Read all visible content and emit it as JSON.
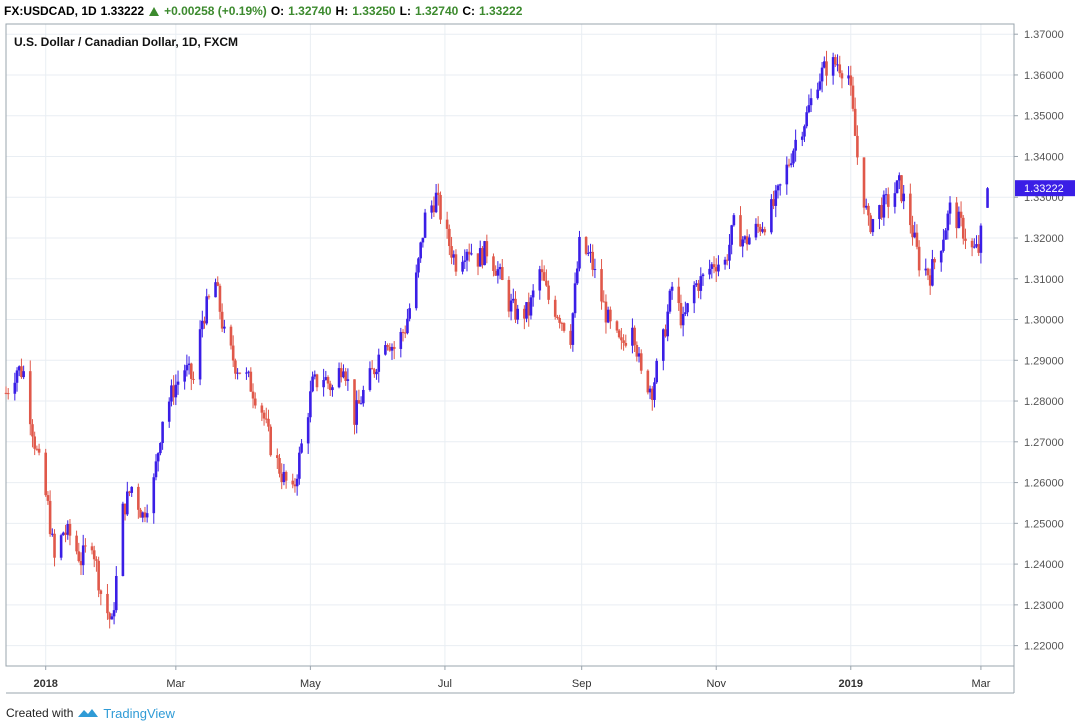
{
  "header": {
    "symbol": "FX:USDCAD, 1D",
    "last": "1.33222",
    "change": "+0.00258 (+0.19%)",
    "o_label": "O:",
    "o_value": "1.32740",
    "h_label": "H:",
    "h_value": "1.33250",
    "l_label": "L:",
    "l_value": "1.32740",
    "c_label": "C:",
    "c_value": "1.33222"
  },
  "footer": {
    "created_with": "Created with",
    "brand": "TradingView"
  },
  "colors": {
    "up": "#3a1ee6",
    "down": "#e0584a",
    "grid": "#e9eef3",
    "axis": "#555555",
    "price_tag": "#3a1ee6"
  },
  "chart_data": {
    "type": "candlestick",
    "title": "U.S. Dollar / Canadian Dollar, 1D, FXCM",
    "ylim": [
      1.215,
      1.3725
    ],
    "y_ticks": [
      "1.37000",
      "1.36000",
      "1.35000",
      "1.34000",
      "1.33000",
      "1.32000",
      "1.31000",
      "1.30000",
      "1.29000",
      "1.28000",
      "1.27000",
      "1.26000",
      "1.25000",
      "1.24000",
      "1.23000",
      "1.22000"
    ],
    "y_tick_values": [
      1.37,
      1.36,
      1.35,
      1.34,
      1.33,
      1.32,
      1.31,
      1.3,
      1.29,
      1.28,
      1.27,
      1.26,
      1.25,
      1.24,
      1.23,
      1.22
    ],
    "x_ticks": [
      {
        "label": "2018",
        "date": "2018-01-01"
      },
      {
        "label": "Mar",
        "date": "2018-03-01"
      },
      {
        "label": "May",
        "date": "2018-05-01"
      },
      {
        "label": "Jul",
        "date": "2018-07-01"
      },
      {
        "label": "Sep",
        "date": "2018-09-01"
      },
      {
        "label": "Nov",
        "date": "2018-11-01"
      },
      {
        "label": "2019",
        "date": "2019-01-01"
      },
      {
        "label": "Mar",
        "date": "2019-03-01"
      }
    ],
    "x_range": [
      "2017-12-14",
      "2019-03-16"
    ],
    "last_price": "1.33222",
    "last_value": 1.33222,
    "grid": true,
    "series_close": [
      [
        "2017-12-14",
        1.282
      ],
      [
        "2017-12-19",
        1.288
      ],
      [
        "2017-12-22",
        1.287
      ],
      [
        "2017-12-27",
        1.27
      ],
      [
        "2018-01-02",
        1.254
      ],
      [
        "2018-01-05",
        1.241
      ],
      [
        "2018-01-09",
        1.248
      ],
      [
        "2018-01-12",
        1.247
      ],
      [
        "2018-01-17",
        1.241
      ],
      [
        "2018-01-22",
        1.246
      ],
      [
        "2018-01-26",
        1.233
      ],
      [
        "2018-01-31",
        1.225
      ],
      [
        "2018-02-05",
        1.253
      ],
      [
        "2018-02-09",
        1.259
      ],
      [
        "2018-02-14",
        1.252
      ],
      [
        "2018-02-19",
        1.26
      ],
      [
        "2018-02-23",
        1.276
      ],
      [
        "2018-02-28",
        1.283
      ],
      [
        "2018-03-05",
        1.288
      ],
      [
        "2018-03-09",
        1.285
      ],
      [
        "2018-03-13",
        1.3
      ],
      [
        "2018-03-19",
        1.309
      ],
      [
        "2018-03-23",
        1.296
      ],
      [
        "2018-03-28",
        1.289
      ],
      [
        "2018-04-03",
        1.285
      ],
      [
        "2018-04-09",
        1.278
      ],
      [
        "2018-04-13",
        1.269
      ],
      [
        "2018-04-18",
        1.262
      ],
      [
        "2018-04-23",
        1.257
      ],
      [
        "2018-04-27",
        1.269
      ],
      [
        "2018-05-02",
        1.284
      ],
      [
        "2018-05-07",
        1.286
      ],
      [
        "2018-05-11",
        1.283
      ],
      [
        "2018-05-16",
        1.29
      ],
      [
        "2018-05-21",
        1.276
      ],
      [
        "2018-05-25",
        1.282
      ],
      [
        "2018-05-30",
        1.288
      ],
      [
        "2018-06-04",
        1.296
      ],
      [
        "2018-06-08",
        1.293
      ],
      [
        "2018-06-13",
        1.298
      ],
      [
        "2018-06-18",
        1.31
      ],
      [
        "2018-06-22",
        1.325
      ],
      [
        "2018-06-27",
        1.33
      ],
      [
        "2018-07-02",
        1.32
      ],
      [
        "2018-07-06",
        1.314
      ],
      [
        "2018-07-11",
        1.318
      ],
      [
        "2018-07-16",
        1.315
      ],
      [
        "2018-07-20",
        1.317
      ],
      [
        "2018-07-25",
        1.312
      ],
      [
        "2018-07-30",
        1.304
      ],
      [
        "2018-08-03",
        1.301
      ],
      [
        "2018-08-08",
        1.302
      ],
      [
        "2018-08-13",
        1.312
      ],
      [
        "2018-08-17",
        1.305
      ],
      [
        "2018-08-22",
        1.301
      ],
      [
        "2018-08-27",
        1.296
      ],
      [
        "2018-08-31",
        1.318
      ],
      [
        "2018-09-05",
        1.315
      ],
      [
        "2018-09-10",
        1.305
      ],
      [
        "2018-09-14",
        1.298
      ],
      [
        "2018-09-19",
        1.293
      ],
      [
        "2018-09-24",
        1.3
      ],
      [
        "2018-09-28",
        1.286
      ],
      [
        "2018-10-03",
        1.283
      ],
      [
        "2018-10-08",
        1.295
      ],
      [
        "2018-10-12",
        1.308
      ],
      [
        "2018-10-17",
        1.299
      ],
      [
        "2018-10-22",
        1.308
      ],
      [
        "2018-10-26",
        1.31
      ],
      [
        "2018-10-31",
        1.314
      ],
      [
        "2018-11-05",
        1.314
      ],
      [
        "2018-11-09",
        1.323
      ],
      [
        "2018-11-14",
        1.319
      ],
      [
        "2018-11-19",
        1.322
      ],
      [
        "2018-11-23",
        1.324
      ],
      [
        "2018-11-28",
        1.329
      ],
      [
        "2018-12-03",
        1.337
      ],
      [
        "2018-12-07",
        1.344
      ],
      [
        "2018-12-12",
        1.35
      ],
      [
        "2018-12-17",
        1.359
      ],
      [
        "2018-12-21",
        1.362
      ],
      [
        "2018-12-26",
        1.363
      ],
      [
        "2018-12-31",
        1.36
      ],
      [
        "2019-01-04",
        1.34
      ],
      [
        "2019-01-09",
        1.323
      ],
      [
        "2019-01-14",
        1.327
      ],
      [
        "2019-01-18",
        1.329
      ],
      [
        "2019-01-23",
        1.333
      ],
      [
        "2019-01-28",
        1.324
      ],
      [
        "2019-02-01",
        1.314
      ],
      [
        "2019-02-06",
        1.311
      ],
      [
        "2019-02-11",
        1.319
      ],
      [
        "2019-02-15",
        1.327
      ],
      [
        "2019-02-20",
        1.323
      ],
      [
        "2019-02-25",
        1.317
      ],
      [
        "2019-02-28",
        1.317
      ],
      [
        "2019-03-04",
        1.3322
      ]
    ]
  }
}
